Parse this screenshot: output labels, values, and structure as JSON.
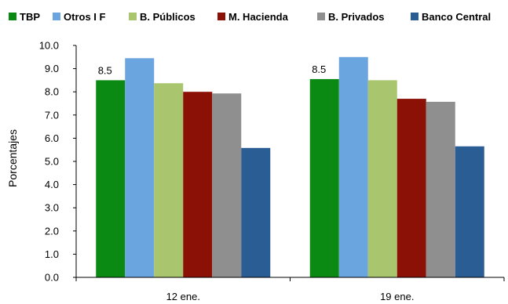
{
  "chart_data": {
    "type": "bar",
    "title": "",
    "xlabel": "",
    "ylabel": "Porcentajes",
    "ylim": [
      0,
      10
    ],
    "ytick_labels": [
      "0.0",
      "1.0",
      "2.0",
      "3.0",
      "4.0",
      "5.0",
      "6.0",
      "7.0",
      "8.0",
      "9.0",
      "10.0"
    ],
    "categories": [
      "12 ene.",
      "19 ene."
    ],
    "legend_position": "top",
    "grid": false,
    "series": [
      {
        "name": "TBP",
        "color": "#0a8a12",
        "values": [
          8.5,
          8.55
        ],
        "data_labels": [
          "8.5",
          "8.5"
        ]
      },
      {
        "name": "Otros I F",
        "color": "#6aa5e0",
        "values": [
          9.45,
          9.5
        ]
      },
      {
        "name": "B. Públicos",
        "color": "#a9c56d",
        "values": [
          8.37,
          8.5
        ]
      },
      {
        "name": "M. Hacienda",
        "color": "#8b1006",
        "values": [
          8.0,
          7.7
        ]
      },
      {
        "name": "B. Privados",
        "color": "#8f8f8f",
        "values": [
          7.93,
          7.57
        ]
      },
      {
        "name": "Banco Central",
        "color": "#2a5d94",
        "values": [
          5.58,
          5.65
        ]
      }
    ]
  }
}
